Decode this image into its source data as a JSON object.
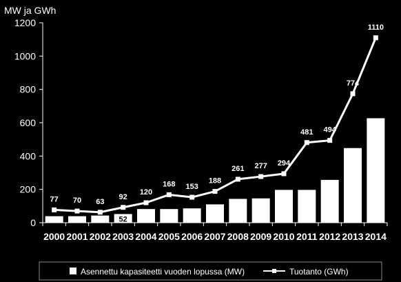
{
  "chart_data": {
    "type": "bar",
    "ylabel": "MW ja GWh",
    "ylim": [
      0,
      1200
    ],
    "yticks": [
      "0",
      "200",
      "400",
      "600",
      "800",
      "1000",
      "1200"
    ],
    "categories": [
      "2000",
      "2001",
      "2002",
      "2003",
      "2004",
      "2005",
      "2006",
      "2007",
      "2008",
      "2009",
      "2010",
      "2011",
      "2012",
      "2013",
      "2014"
    ],
    "series": [
      {
        "name": "Asennettu kapasiteetti vuoden lopussa (MW)",
        "type": "bar",
        "values": [
          39,
          39,
          43,
          52,
          82,
          82,
          86,
          110,
          143,
          146,
          197,
          197,
          257,
          448,
          627
        ]
      },
      {
        "name": "Tuotanto (GWh)",
        "type": "line",
        "values": [
          77,
          70,
          63,
          92,
          120,
          168,
          153,
          188,
          261,
          277,
          294,
          481,
          494,
          774,
          1110
        ]
      }
    ],
    "point_labels": [
      "77",
      "70",
      "63",
      "92",
      "120",
      "168",
      "153",
      "188",
      "261",
      "277",
      "294",
      "481",
      "494",
      "774",
      "1110"
    ],
    "bar_labels": [
      "",
      "",
      "",
      "52",
      "",
      "",
      "",
      "",
      "",
      "",
      "",
      "",
      "",
      "",
      ""
    ],
    "grid": false,
    "legend_position": "bottom",
    "colors": {
      "background": "#000000",
      "bars": "#ffffff",
      "line": "#ffffff",
      "axis": "#ffffff"
    }
  }
}
